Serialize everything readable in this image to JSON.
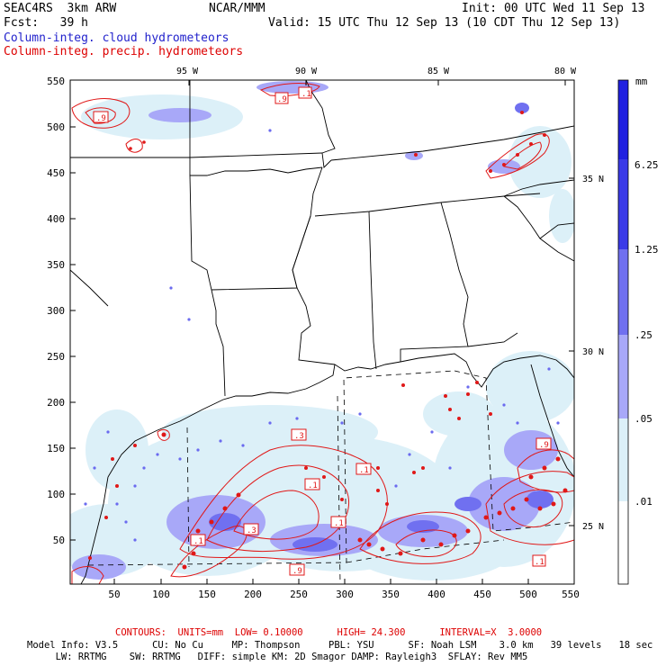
{
  "header": {
    "model": "SEAC4RS  3km ARW",
    "org": "NCAR/MMM",
    "init": "Init: 00 UTC Wed 11 Sep 13",
    "fcst": "Fcst:   39 h",
    "valid": "Valid: 15 UTC Thu 12 Sep 13 (10 CDT Thu 12 Sep 13)",
    "field1": "Column-integ. cloud hydrometeors",
    "field2": "Column-integ. precip. hydrometeors"
  },
  "axes": {
    "x_ticks": [
      "50",
      "100",
      "150",
      "200",
      "250",
      "300",
      "350",
      "400",
      "450",
      "500",
      "550"
    ],
    "y_ticks": [
      "50",
      "100",
      "150",
      "200",
      "250",
      "300",
      "350",
      "400",
      "450",
      "500",
      "550"
    ],
    "lon_labels": [
      "95 W",
      "90 W",
      "85 W",
      "80 W"
    ],
    "lat_labels": [
      "35 N",
      "30 N",
      "25 N"
    ]
  },
  "colorbar": {
    "unit": "mm",
    "labels": [
      "6.25",
      "1.25",
      ".25",
      ".05",
      ".01"
    ],
    "colors": [
      "#2020e0",
      "#3a3ae8",
      "#7070f0",
      "#a8a8f8",
      "#dcf0f8",
      "#ffffff"
    ]
  },
  "contour_labels": [
    ".9",
    ".1",
    ".3",
    ".1",
    ".1",
    ".3",
    ".1",
    ".9",
    ".1",
    ".9",
    ".9",
    ".1"
  ],
  "footer": {
    "contours": "CONTOURS:  UNITS=mm  LOW= 0.10000      HIGH= 24.300      INTERVAL=X  3.0000",
    "line1": "Model Info: V3.5      CU: No Cu     MP: Thompson     PBL: YSU      SF: Noah LSM    3.0 km   39 levels   18 sec",
    "line2": "     LW: RRTMG    SW: RRTMG   DIFF: simple KM: 2D Smagor DAMP: Rayleigh3  SFLAY: Rev MM5"
  }
}
